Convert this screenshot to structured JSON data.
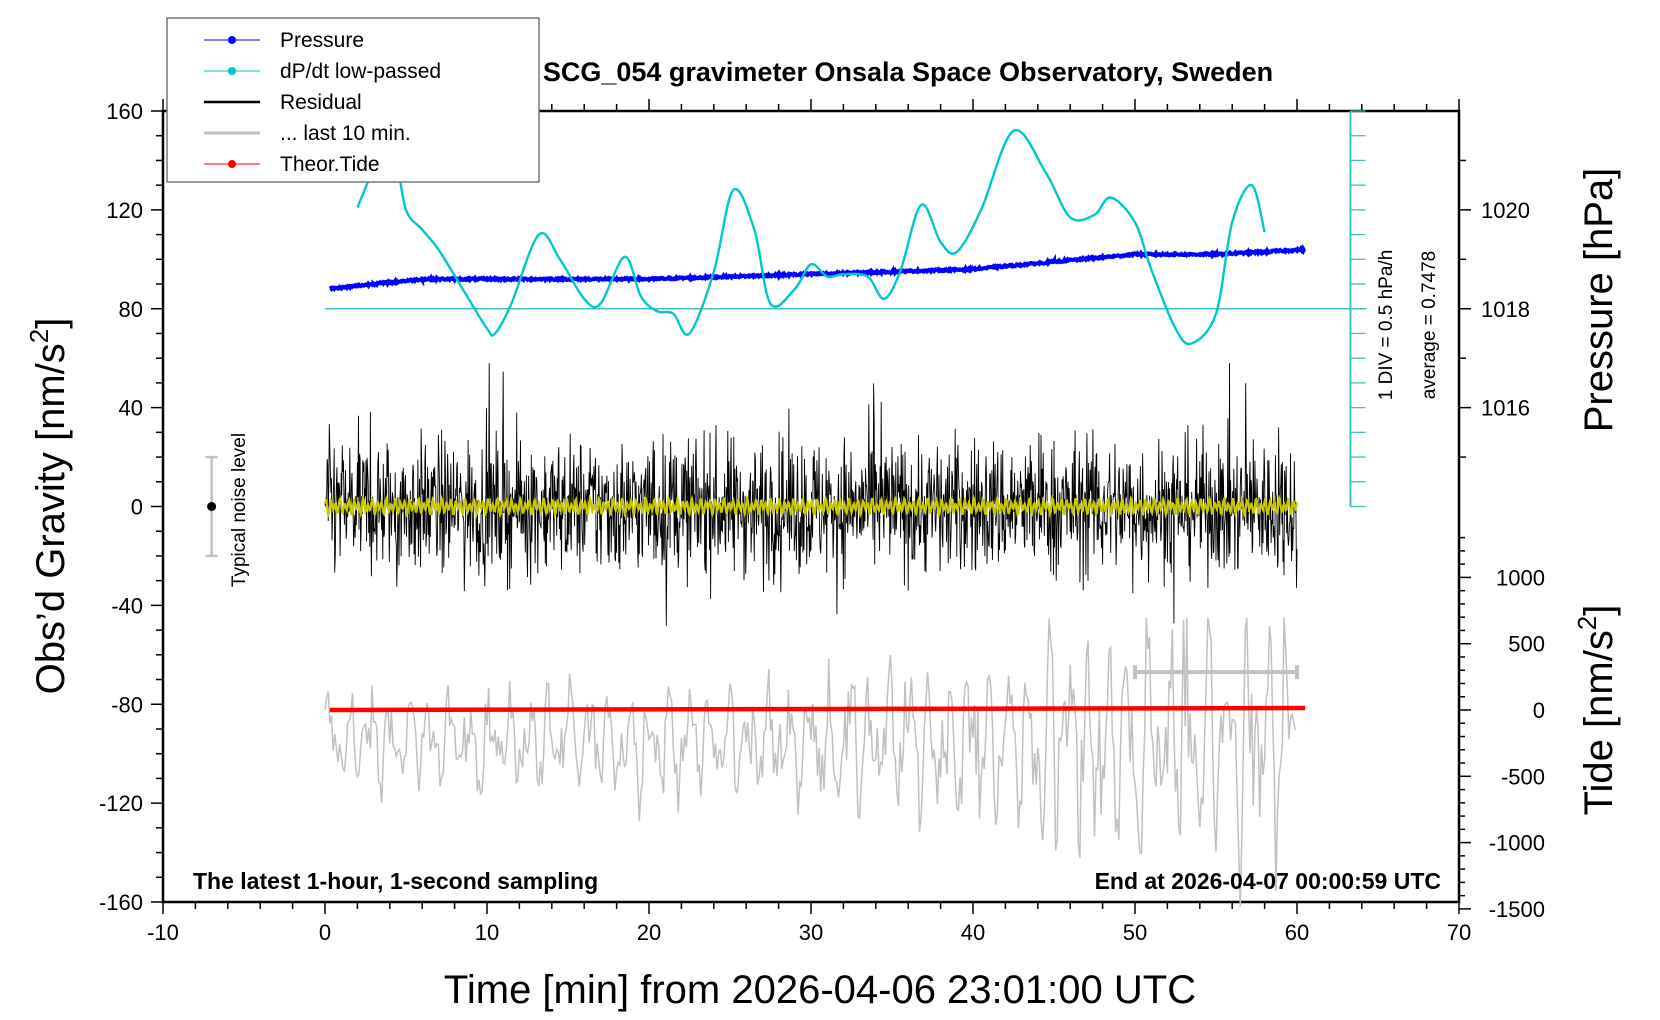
{
  "chart_data": {
    "type": "line",
    "title": "SCG_054 gravimeter Onsala Space Observatory, Sweden",
    "xlabel": "Time [min] from 2026-04-06 23:01:00 UTC",
    "ylabel_left": "Obs’d Gravity [nm/s²]",
    "ylabel_left_parts": {
      "main": "Obs’d Gravity [nm/s",
      "sup": "2",
      "end": "]"
    },
    "ylabel_right_pressure": "Pressure [hPa]",
    "ylabel_right_tide_parts": {
      "main": "Tide [nm/s",
      "sup": "2",
      "end": "]"
    },
    "xlim": [
      -10,
      70
    ],
    "ylim_left": [
      -160,
      160
    ],
    "x_ticks": [
      -10,
      0,
      10,
      20,
      30,
      40,
      50,
      60,
      70
    ],
    "x_tick_labels": [
      "-10",
      "0",
      "10",
      "20",
      "30",
      "40",
      "50",
      "60",
      "70"
    ],
    "y_ticks_left": [
      160,
      120,
      80,
      40,
      0,
      -40,
      -80,
      -120,
      -160
    ],
    "y_tick_labels_left": [
      "160",
      "120",
      "80",
      "40",
      "0",
      "-40",
      "-80",
      "-120",
      "-160"
    ],
    "pressure_axis": {
      "ticks": [
        1020,
        1018,
        1016
      ],
      "tick_labels": [
        "1020",
        "1018",
        "1016"
      ],
      "gravity_equiv": {
        "1020": 120,
        "1018": 80,
        "1016": 40
      }
    },
    "tide_axis": {
      "ticks": [
        1000,
        500,
        0,
        -500,
        -1000,
        -1500
      ],
      "tick_labels": [
        "1000",
        "500",
        "0",
        "-500",
        "-1000",
        "-1500"
      ],
      "range": [
        -1500,
        1500
      ]
    },
    "dpdt_axis": {
      "label": "1 DIV = 0.5 hPa/h",
      "average_label": "average = 0.7478",
      "divisions": 8
    },
    "legend": {
      "placement": "top-left",
      "entries": [
        {
          "label": "Pressure",
          "color": "#0000ff",
          "marker": "dot"
        },
        {
          "label": "dP/dt low-passed",
          "color": "#00c8c8",
          "marker": "dot"
        },
        {
          "label": "Residual",
          "color": "#000000",
          "marker": "line"
        },
        {
          "label": "... last 10 min.",
          "color": "#c0c0c0",
          "marker": "line"
        },
        {
          "label": "Theor.Tide",
          "color": "#ff0000",
          "marker": "dot"
        }
      ]
    },
    "annotations": {
      "bottom_left": "The latest 1-hour, 1-second sampling",
      "bottom_right": "End at 2026-04-07 00:00:59 UTC",
      "noise_label": "Typical noise level",
      "noise_level": {
        "x": -7,
        "center": 0,
        "half_range": 20
      }
    },
    "series": [
      {
        "name": "Pressure",
        "color": "#0000ff",
        "x": [
          0.3,
          3,
          6,
          10,
          15,
          20,
          25,
          30,
          35,
          40,
          45,
          50,
          55,
          58,
          60.5
        ],
        "y_hpa": [
          1018.4,
          1018.5,
          1018.6,
          1018.6,
          1018.6,
          1018.6,
          1018.65,
          1018.7,
          1018.75,
          1018.8,
          1018.95,
          1019.1,
          1019.1,
          1019.15,
          1019.2
        ]
      },
      {
        "name": "dP/dt low-passed",
        "color": "#00c8c8",
        "x": [
          2,
          3.3,
          4.3,
          5,
          6,
          7,
          8.5,
          10,
          10.5,
          11.5,
          13.2,
          14.5,
          16,
          17,
          18.5,
          19.5,
          20.5,
          21.5,
          22.5,
          24,
          25.2,
          26.5,
          27.5,
          29,
          30,
          31,
          32,
          33.5,
          34.5,
          35.5,
          36.8,
          38,
          39,
          40.5,
          42.5,
          44.5,
          46,
          47.5,
          48.5,
          50,
          51,
          52.5,
          53.5,
          55,
          56,
          57.2,
          58
        ],
        "y": [
          121,
          140,
          142,
          120,
          112,
          104,
          88,
          72,
          70,
          82,
          110,
          100,
          84,
          82,
          101,
          85,
          79,
          78,
          70,
          95,
          128,
          112,
          82,
          88,
          98,
          93,
          94,
          93,
          84,
          95,
          122,
          107,
          103,
          120,
          152,
          135,
          117,
          118,
          125,
          115,
          96,
          72,
          66,
          78,
          115,
          130,
          111
        ]
      },
      {
        "name": "Residual",
        "color": "#000000",
        "x_range": [
          0,
          60
        ],
        "amplitude_nms2": 25,
        "peak_max": 58,
        "peak_min": -66
      },
      {
        "name": "Residual low-passed",
        "color": "#c8c800",
        "x_range": [
          0,
          60
        ],
        "mean": 0
      },
      {
        "name": "... last 10 min.",
        "color": "#c0c0c0",
        "x_range": [
          0,
          60
        ],
        "mean_nms2": -95,
        "bar_x_range": [
          50,
          60
        ],
        "bar_y": -67
      },
      {
        "name": "Theor.Tide",
        "color": "#ff0000",
        "x": [
          0.3,
          60.5
        ],
        "y_tide": [
          0,
          15
        ]
      }
    ]
  }
}
